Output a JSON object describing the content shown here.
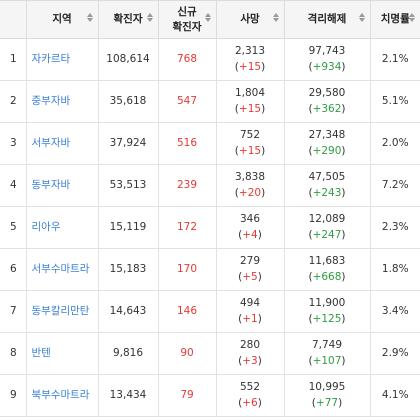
{
  "headers": {
    "no": "",
    "region": "지역",
    "confirmed": "확진자",
    "new_line1": "신규",
    "new_line2": "확진자",
    "death": "사망",
    "recovered": "격리해제",
    "rate": "치명률"
  },
  "rows": [
    {
      "no": "1",
      "region": "자카르타",
      "confirmed": "108,614",
      "new": "768",
      "death": "2,313",
      "death_delta": "+15",
      "recovered": "97,743",
      "recovered_delta": "+934",
      "rate": "2.1%"
    },
    {
      "no": "2",
      "region": "중부자바",
      "confirmed": "35,618",
      "new": "547",
      "death": "1,804",
      "death_delta": "+15",
      "recovered": "29,580",
      "recovered_delta": "+362",
      "rate": "5.1%"
    },
    {
      "no": "3",
      "region": "서부자바",
      "confirmed": "37,924",
      "new": "516",
      "death": "752",
      "death_delta": "+15",
      "recovered": "27,348",
      "recovered_delta": "+290",
      "rate": "2.0%"
    },
    {
      "no": "4",
      "region": "동부자바",
      "confirmed": "53,513",
      "new": "239",
      "death": "3,838",
      "death_delta": "+20",
      "recovered": "47,505",
      "recovered_delta": "+243",
      "rate": "7.2%"
    },
    {
      "no": "5",
      "region": "리아우",
      "confirmed": "15,119",
      "new": "172",
      "death": "346",
      "death_delta": "+4",
      "recovered": "12,089",
      "recovered_delta": "+247",
      "rate": "2.3%"
    },
    {
      "no": "6",
      "region": "서부수마트라",
      "confirmed": "15,183",
      "new": "170",
      "death": "279",
      "death_delta": "+5",
      "recovered": "11,683",
      "recovered_delta": "+668",
      "rate": "1.8%"
    },
    {
      "no": "7",
      "region": "동부칼리만탄",
      "confirmed": "14,643",
      "new": "146",
      "death": "494",
      "death_delta": "+1",
      "recovered": "11,900",
      "recovered_delta": "+125",
      "rate": "3.4%"
    },
    {
      "no": "8",
      "region": "반텐",
      "confirmed": "9,816",
      "new": "90",
      "death": "280",
      "death_delta": "+3",
      "recovered": "7,749",
      "recovered_delta": "+107",
      "rate": "2.9%"
    },
    {
      "no": "9",
      "region": "북부수마트라",
      "confirmed": "13,434",
      "new": "79",
      "death": "552",
      "death_delta": "+6",
      "recovered": "10,995",
      "recovered_delta": "+77",
      "rate": "4.1%"
    }
  ],
  "colors": {
    "region_link": "#3a7fd5",
    "new_cases": "#e53935",
    "death_delta": "#e53935",
    "recovered_delta": "#2e9d45",
    "header_bg": "#f5f5f5"
  },
  "icons": {
    "sort": "sort-arrows-icon"
  }
}
